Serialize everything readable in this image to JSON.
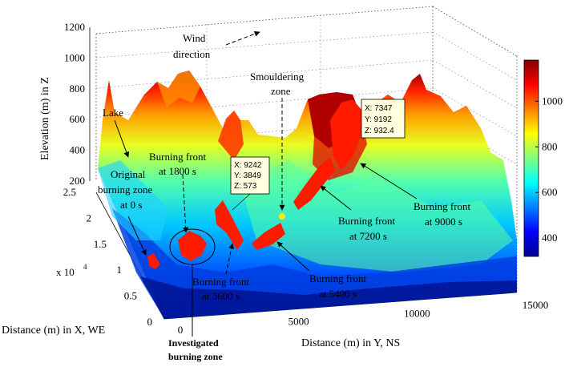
{
  "chart_data": {
    "type": "surface",
    "xlabel": "Distance (m) in X, WE",
    "ylabel": "Distance (m) in Y, NS",
    "zlabel": "Elevation (m) in Z",
    "x_multiplier": "x 10",
    "x_multiplier_exp": "4",
    "x_ticks": [
      "0",
      "0.5",
      "1",
      "1.5",
      "2",
      "2.5"
    ],
    "y_ticks": [
      "0",
      "5000",
      "10000",
      "15000"
    ],
    "z_ticks": [
      "200",
      "400",
      "600",
      "800",
      "1000",
      "1200"
    ],
    "xlim": [
      0,
      25000
    ],
    "ylim": [
      0,
      15000
    ],
    "zlim": [
      200,
      1200
    ],
    "colorbar": {
      "ticks": [
        "400",
        "600",
        "800",
        "1000"
      ],
      "range": [
        320,
        1180
      ],
      "colormap": "jet"
    },
    "data_tips": [
      {
        "x": "X: 9242",
        "y": "Y: 3849",
        "z": "Z: 573"
      },
      {
        "x": "X: 7347",
        "y": "Y: 9192",
        "z": "Z: 932.4"
      }
    ],
    "annotations": {
      "wind1": "Wind",
      "wind2": "direction",
      "smoulder1": "Smouldering",
      "smoulder2": "zone",
      "lake": "Lake",
      "orig1": "Original",
      "orig2": "burning zone",
      "orig3": "at 0 s",
      "bf1800a": "Burning front",
      "bf1800b": "at 1800 s",
      "bf3600a": "Burning front",
      "bf3600b": "at 3600 s",
      "bf5400a": "Burning front",
      "bf5400b": "at 5400 s",
      "bf7200a": "Burning front",
      "bf7200b": "at 7200 s",
      "bf9000a": "Burning front",
      "bf9000b": "at 9000 s",
      "invest1": "Investigated",
      "invest2": "burning zone"
    },
    "colors": {
      "fire": "#ff1a00",
      "smoulder": "#ffee00"
    }
  }
}
